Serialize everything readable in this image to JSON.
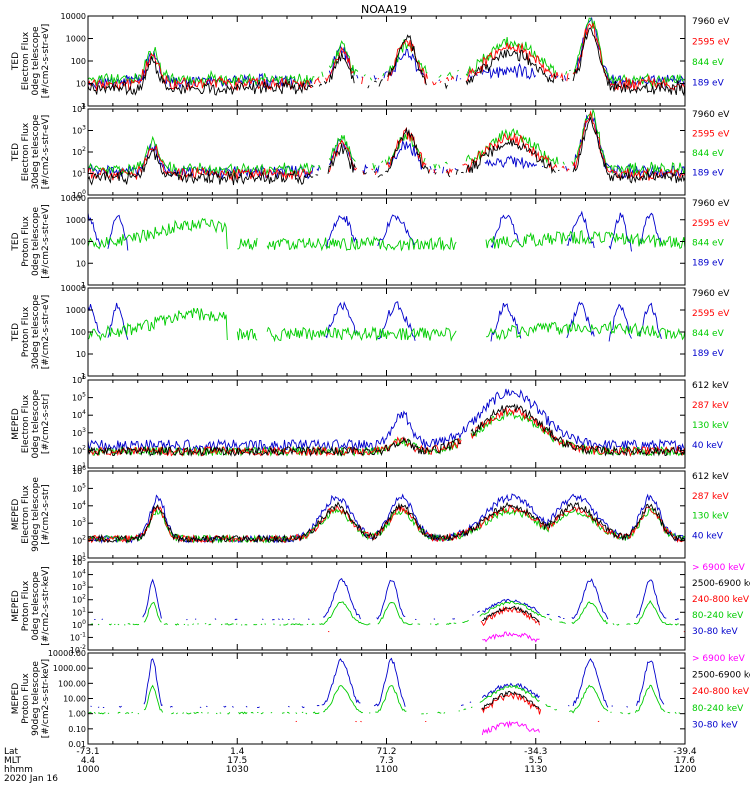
{
  "chart_data": {
    "type": "line",
    "title": "NOAA19",
    "xaxis": {
      "row_labels": [
        "Lat",
        "MLT",
        "hhmm"
      ],
      "date": "2020 Jan 16",
      "ticks": [
        {
          "lat": "-73.1",
          "mlt": "4.4",
          "hhmm": "1000"
        },
        {
          "lat": "1.4",
          "mlt": "17.5",
          "hhmm": "1030"
        },
        {
          "lat": "71.2",
          "mlt": "7.3",
          "hhmm": "1100"
        },
        {
          "lat": "-34.3",
          "mlt": "5.5",
          "hhmm": "1130"
        },
        {
          "lat": "-39.4",
          "mlt": "17.6",
          "hhmm": "1200"
        }
      ],
      "range_minutes": [
        0,
        120
      ]
    },
    "panels": [
      {
        "ylabel": [
          "TED",
          "Electron Flux",
          "0deg telescope",
          "[#/cm2-s-str-eV]"
        ],
        "ylim_log10": [
          0,
          4
        ],
        "ytick_labels": [
          "1",
          "10",
          "100",
          "1000",
          "10000"
        ],
        "series": [
          {
            "name": "7960 eV",
            "color": "#000000"
          },
          {
            "name": "2595 eV",
            "color": "#ff0000"
          },
          {
            "name": "844 eV",
            "color": "#00cc00"
          },
          {
            "name": "189 eV",
            "color": "#0000cc"
          }
        ]
      },
      {
        "ylabel": [
          "TED",
          "Electron Flux",
          "30deg telescope",
          "[#/cm2-s-str-eV]"
        ],
        "ylim_log10": [
          0,
          4
        ],
        "ytick_labels": [
          "10^0",
          "10^1",
          "10^2",
          "10^3",
          "10^4"
        ],
        "series": [
          {
            "name": "7960 eV",
            "color": "#000000"
          },
          {
            "name": "2595 eV",
            "color": "#ff0000"
          },
          {
            "name": "844 eV",
            "color": "#00cc00"
          },
          {
            "name": "189 eV",
            "color": "#0000cc"
          }
        ]
      },
      {
        "ylabel": [
          "TED",
          "Proton Flux",
          "0deg telescope",
          "[#/cm2-s-str-eV]"
        ],
        "ylim_log10": [
          0,
          4
        ],
        "ytick_labels": [
          "1",
          "10",
          "100",
          "1000",
          "10000"
        ],
        "series": [
          {
            "name": "7960 eV",
            "color": "#000000"
          },
          {
            "name": "2595 eV",
            "color": "#ff0000"
          },
          {
            "name": "844 eV",
            "color": "#00cc00"
          },
          {
            "name": "189 eV",
            "color": "#0000cc"
          }
        ]
      },
      {
        "ylabel": [
          "TED",
          "Proton Flux",
          "30deg telescope",
          "[#/cm2-s-str-eV]"
        ],
        "ylim_log10": [
          0,
          4
        ],
        "ytick_labels": [
          "1",
          "10",
          "100",
          "1000",
          "10000"
        ],
        "series": [
          {
            "name": "7960 eV",
            "color": "#000000"
          },
          {
            "name": "2595 eV",
            "color": "#ff0000"
          },
          {
            "name": "844 eV",
            "color": "#00cc00"
          },
          {
            "name": "189 eV",
            "color": "#0000cc"
          }
        ]
      },
      {
        "ylabel": [
          "MEPED",
          "Electron Flux",
          "0deg telescope",
          "[#/cm2-s-str]"
        ],
        "ylim_log10": [
          1,
          6
        ],
        "ytick_labels": [
          "10^1",
          "10^2",
          "10^3",
          "10^4",
          "10^5",
          "10^6"
        ],
        "series": [
          {
            "name": "612 keV",
            "color": "#000000"
          },
          {
            "name": "287 keV",
            "color": "#ff0000"
          },
          {
            "name": "130 keV",
            "color": "#00cc00"
          },
          {
            "name": "40 keV",
            "color": "#0000cc"
          }
        ]
      },
      {
        "ylabel": [
          "MEPED",
          "Electron Flux",
          "90deg telescope",
          "[#/cm2-s-str]"
        ],
        "ylim_log10": [
          1,
          6
        ],
        "ytick_labels": [
          "10^1",
          "10^2",
          "10^3",
          "10^4",
          "10^5",
          "10^6"
        ],
        "series": [
          {
            "name": "612 keV",
            "color": "#000000"
          },
          {
            "name": "287 keV",
            "color": "#ff0000"
          },
          {
            "name": "130 keV",
            "color": "#00cc00"
          },
          {
            "name": "40 keV",
            "color": "#0000cc"
          }
        ]
      },
      {
        "ylabel": [
          "MEPED",
          "Proton Flux",
          "0deg telescope",
          "[#/cm2-s-str-keV]"
        ],
        "ylim_log10": [
          -2,
          5
        ],
        "ytick_labels": [
          "10^-2",
          "10^-1",
          "10^0",
          "10^1",
          "10^2",
          "10^3",
          "10^4",
          "10^5"
        ],
        "series": [
          {
            "name": "> 6900 keV",
            "color": "#ff00ff"
          },
          {
            "name": "2500-6900 keV",
            "color": "#000000"
          },
          {
            "name": "240-800 keV",
            "color": "#ff0000"
          },
          {
            "name": "80-240 keV",
            "color": "#00cc00"
          },
          {
            "name": "30-80 keV",
            "color": "#0000cc"
          }
        ]
      },
      {
        "ylabel": [
          "MEPED",
          "Proton Flux",
          "90deg telescope",
          "[#/cm2-s-str-keV]"
        ],
        "ylim_log10": [
          -2,
          4
        ],
        "ytick_labels": [
          "0.01",
          "0.10",
          "1.00",
          "10.00",
          "100.00",
          "1000.00",
          "10000.00"
        ],
        "series": [
          {
            "name": "> 6900 keV",
            "color": "#ff00ff"
          },
          {
            "name": "2500-6900 keV",
            "color": "#000000"
          },
          {
            "name": "240-800 keV",
            "color": "#ff0000"
          },
          {
            "name": "80-240 keV",
            "color": "#00cc00"
          },
          {
            "name": "30-80 keV",
            "color": "#0000cc"
          }
        ]
      }
    ]
  }
}
